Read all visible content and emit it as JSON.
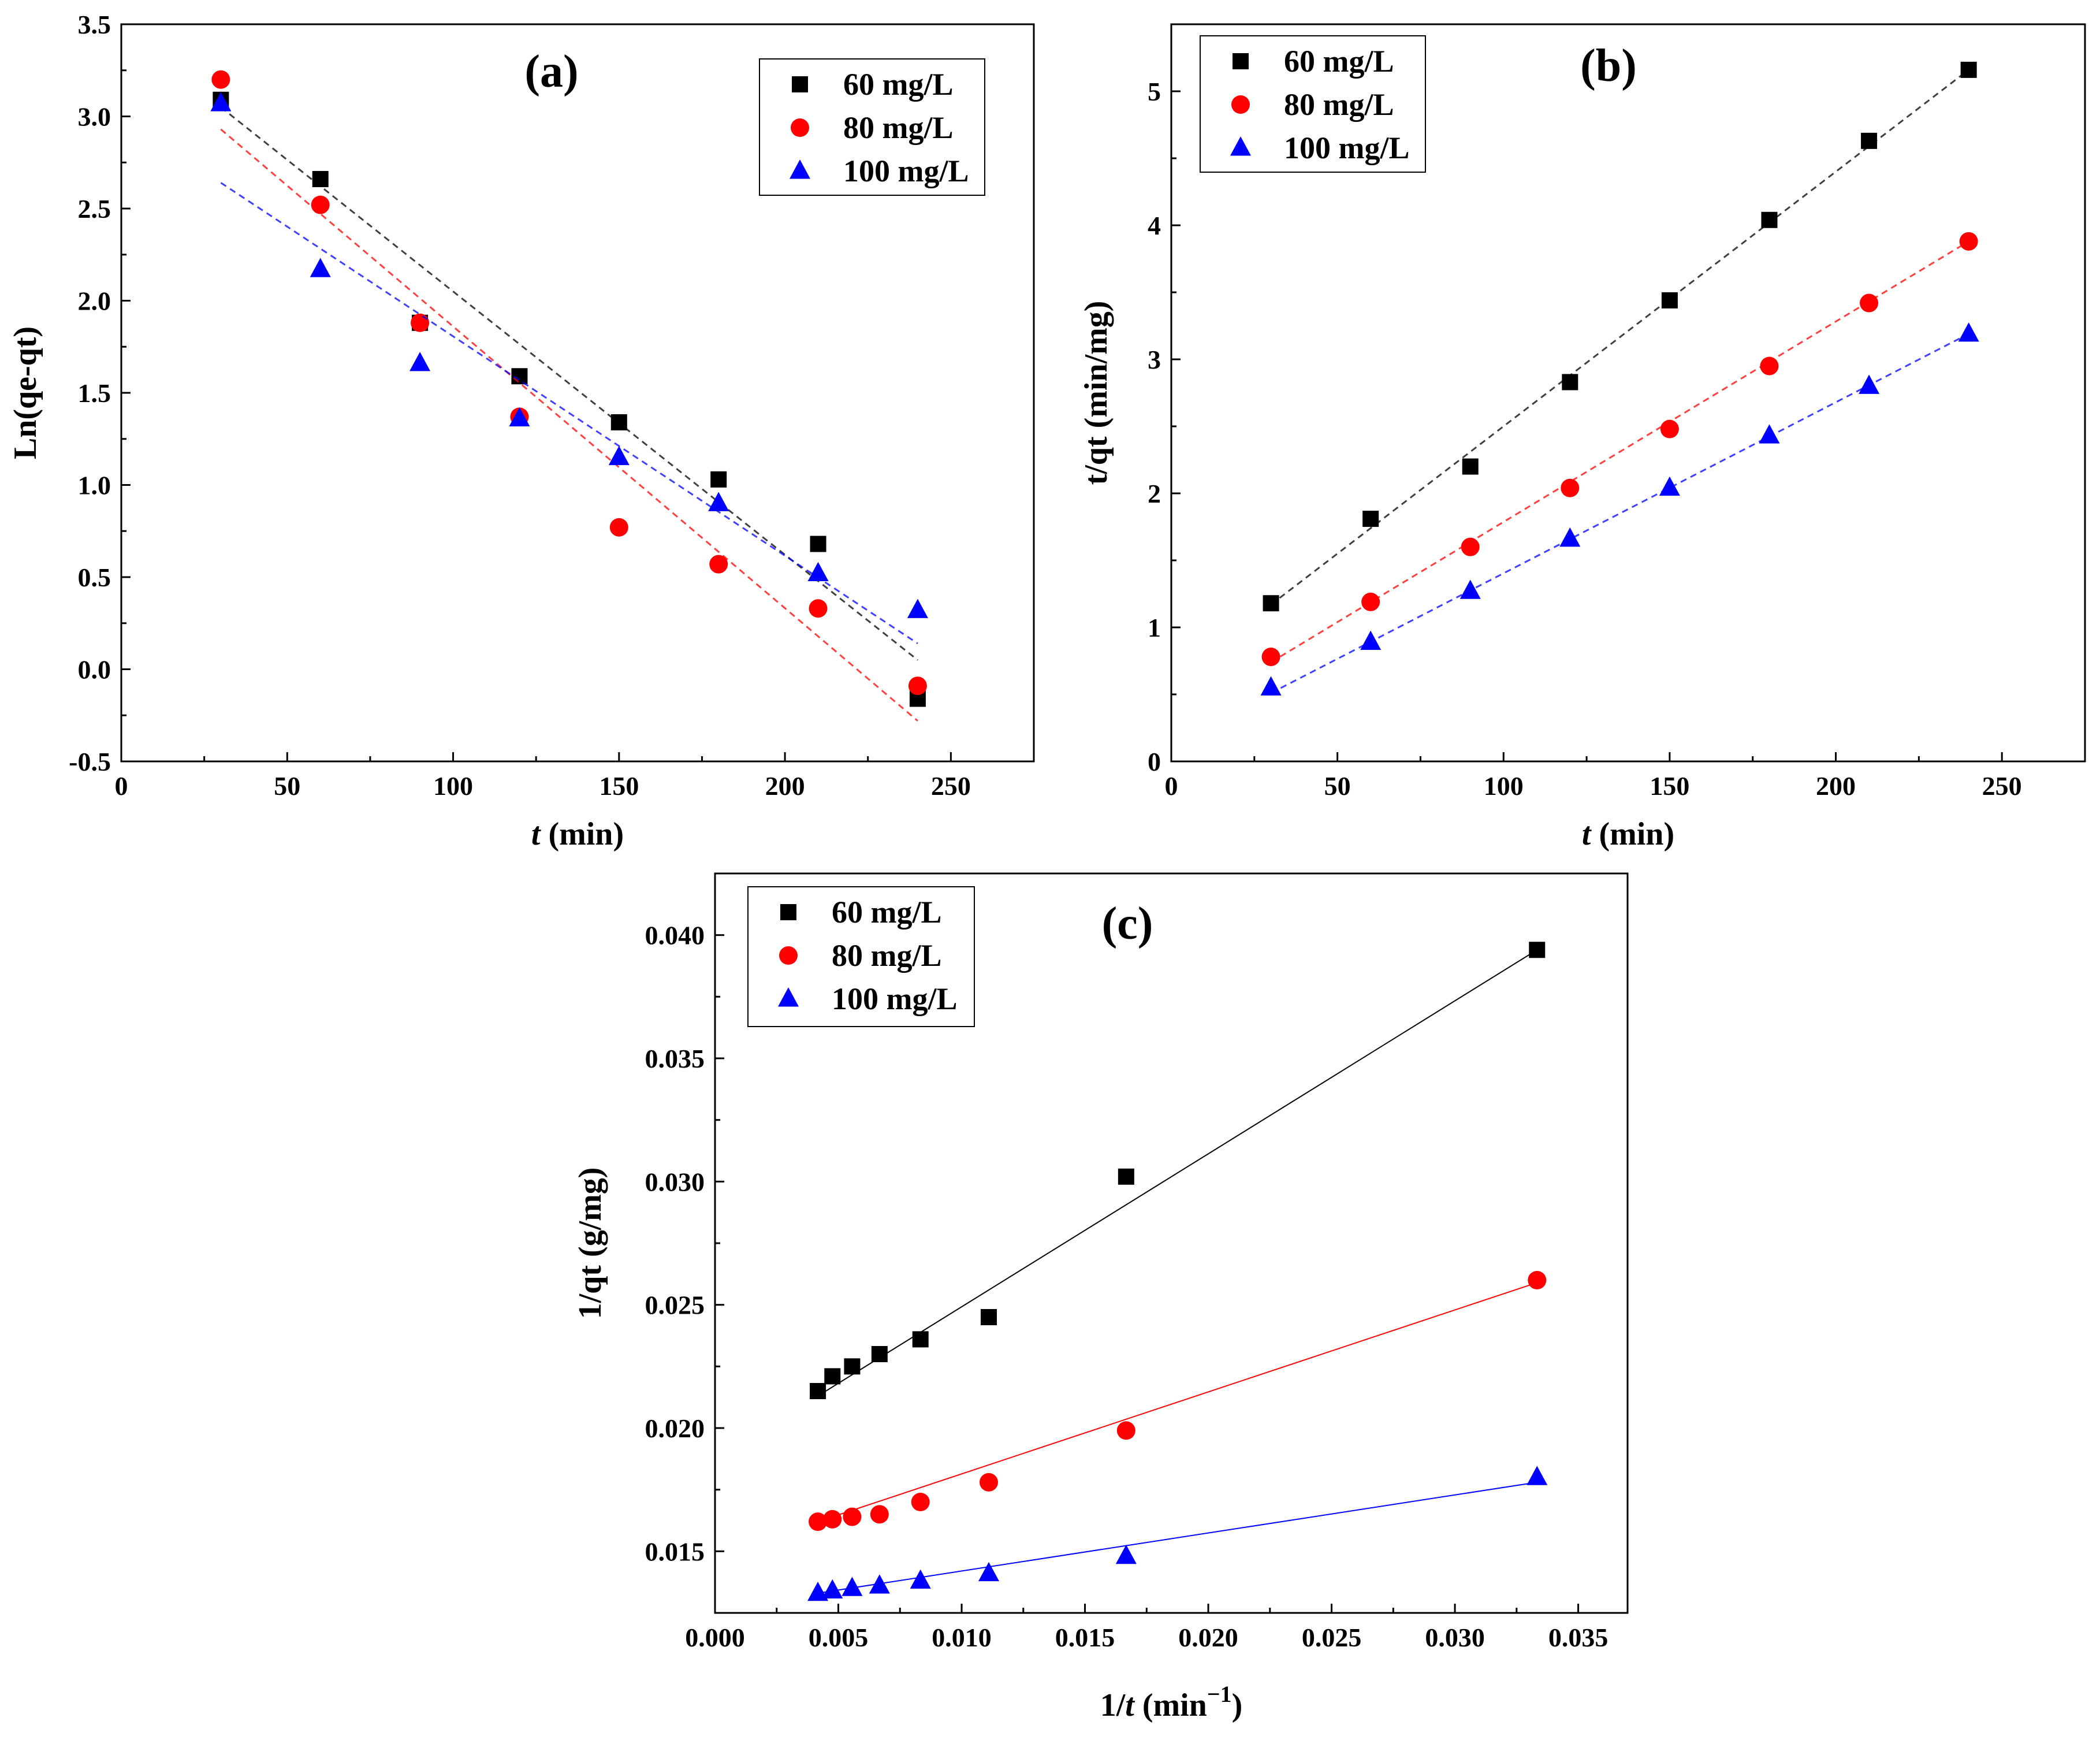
{
  "chart_data": [
    {
      "type": "scatter",
      "panel_label": "(a)",
      "xlabel": {
        "var": "t",
        "rest": " (min)"
      },
      "ylabel": "Ln(qe-qt)",
      "xlim": [
        0,
        275
      ],
      "ylim": [
        -0.5,
        3.5
      ],
      "xticks": [
        0,
        50,
        100,
        150,
        200,
        250
      ],
      "xtick_labels": [
        "0",
        "50",
        "100",
        "150",
        "200",
        "250"
      ],
      "yticks": [
        -0.5,
        0.0,
        0.5,
        1.0,
        1.5,
        2.0,
        2.5,
        3.0,
        3.5
      ],
      "ytick_labels": [
        "-0.5",
        "0.0",
        "0.5",
        "1.0",
        "1.5",
        "2.0",
        "2.5",
        "3.0",
        "3.5"
      ],
      "fit_style": "dashed",
      "legend_position": "top-right",
      "series": [
        {
          "name": "60 mg/L",
          "color": "#000000",
          "marker": "square",
          "x": [
            30,
            60,
            90,
            120,
            150,
            180,
            210,
            240
          ],
          "y": [
            3.09,
            2.66,
            1.88,
            1.59,
            1.34,
            1.03,
            0.68,
            -0.16
          ],
          "fit": [
            [
              30,
              3.05
            ],
            [
              240,
              0.05
            ]
          ]
        },
        {
          "name": "80 mg/L",
          "color": "#ff0000",
          "marker": "circle",
          "x": [
            30,
            60,
            90,
            120,
            150,
            180,
            210,
            240
          ],
          "y": [
            3.2,
            2.52,
            1.88,
            1.37,
            0.77,
            0.57,
            0.33,
            -0.09
          ],
          "fit": [
            [
              30,
              2.93
            ],
            [
              240,
              -0.28
            ]
          ]
        },
        {
          "name": "100 mg/L",
          "color": "#0000ff",
          "marker": "triangle",
          "x": [
            30,
            60,
            90,
            120,
            150,
            180,
            210,
            240
          ],
          "y": [
            3.07,
            2.17,
            1.66,
            1.36,
            1.15,
            0.9,
            0.52,
            0.32
          ],
          "fit": [
            [
              30,
              2.64
            ],
            [
              240,
              0.14
            ]
          ]
        }
      ]
    },
    {
      "type": "scatter",
      "panel_label": "(b)",
      "xlabel": {
        "var": "t",
        "rest": " (min)"
      },
      "ylabel": "t/qt (min/mg)",
      "xlim": [
        0,
        275
      ],
      "ylim": [
        0,
        5.5
      ],
      "xticks": [
        0,
        50,
        100,
        150,
        200,
        250
      ],
      "xtick_labels": [
        "0",
        "50",
        "100",
        "150",
        "200",
        "250"
      ],
      "yticks": [
        0,
        1,
        2,
        3,
        4,
        5
      ],
      "ytick_labels": [
        "0",
        "1",
        "2",
        "3",
        "4",
        "5"
      ],
      "fit_style": "dashed",
      "legend_position": "top-left",
      "series": [
        {
          "name": "60 mg/L",
          "color": "#000000",
          "marker": "square",
          "x": [
            30,
            60,
            90,
            120,
            150,
            180,
            210,
            240
          ],
          "y": [
            1.18,
            1.81,
            2.2,
            2.83,
            3.44,
            4.04,
            4.63,
            5.16
          ],
          "fit": [
            [
              30,
              1.17
            ],
            [
              240,
              5.16
            ]
          ]
        },
        {
          "name": "80 mg/L",
          "color": "#ff0000",
          "marker": "circle",
          "x": [
            30,
            60,
            90,
            120,
            150,
            180,
            210,
            240
          ],
          "y": [
            0.78,
            1.19,
            1.6,
            2.04,
            2.48,
            2.95,
            3.42,
            3.88
          ],
          "fit": [
            [
              30,
              0.74
            ],
            [
              240,
              3.88
            ]
          ]
        },
        {
          "name": "100 mg/L",
          "color": "#0000ff",
          "marker": "triangle",
          "x": [
            30,
            60,
            90,
            120,
            150,
            180,
            210,
            240
          ],
          "y": [
            0.55,
            0.89,
            1.27,
            1.66,
            2.04,
            2.43,
            2.8,
            3.19
          ],
          "fit": [
            [
              30,
              0.51
            ],
            [
              240,
              3.19
            ]
          ]
        }
      ]
    },
    {
      "type": "scatter",
      "panel_label": "(c)",
      "xlabel": {
        "pre": "1/",
        "var": "t",
        "rest": " (min",
        "sup": "−1",
        "post": ")"
      },
      "ylabel": "1/qt (g/mg)",
      "xlim": [
        0.0,
        0.037
      ],
      "ylim": [
        0.0125,
        0.0425
      ],
      "xticks": [
        0.0,
        0.005,
        0.01,
        0.015,
        0.02,
        0.025,
        0.03,
        0.035
      ],
      "xtick_labels": [
        "0.000",
        "0.005",
        "0.010",
        "0.015",
        "0.020",
        "0.025",
        "0.030",
        "0.035"
      ],
      "yticks": [
        0.015,
        0.02,
        0.025,
        0.03,
        0.035,
        0.04
      ],
      "ytick_labels": [
        "0.015",
        "0.020",
        "0.025",
        "0.030",
        "0.035",
        "0.040"
      ],
      "fit_style": "solid",
      "legend_position": "top-left",
      "series": [
        {
          "name": "60 mg/L",
          "color": "#000000",
          "marker": "square",
          "x": [
            0.00417,
            0.00476,
            0.00556,
            0.00667,
            0.00833,
            0.0111,
            0.01667,
            0.03333
          ],
          "y": [
            0.0215,
            0.0221,
            0.0225,
            0.023,
            0.0236,
            0.0245,
            0.0302,
            0.0394
          ],
          "fit": [
            [
              0.00417,
              0.0213
            ],
            [
              0.03333,
              0.0394
            ]
          ]
        },
        {
          "name": "80 mg/L",
          "color": "#ff0000",
          "marker": "circle",
          "x": [
            0.00417,
            0.00476,
            0.00556,
            0.00667,
            0.00833,
            0.0111,
            0.01667,
            0.03333
          ],
          "y": [
            0.0162,
            0.0163,
            0.0164,
            0.0165,
            0.017,
            0.0178,
            0.0199,
            0.026
          ],
          "fit": [
            [
              0.00417,
              0.0162
            ],
            [
              0.03333,
              0.0259
            ]
          ]
        },
        {
          "name": "100 mg/L",
          "color": "#0000ff",
          "marker": "triangle",
          "x": [
            0.00417,
            0.00476,
            0.00556,
            0.00667,
            0.00833,
            0.0111,
            0.01667,
            0.03333
          ],
          "y": [
            0.0133,
            0.0134,
            0.0135,
            0.0136,
            0.0138,
            0.0141,
            0.0148,
            0.018
          ],
          "fit": [
            [
              0.00417,
              0.0133
            ],
            [
              0.03333,
              0.0178
            ]
          ]
        }
      ]
    }
  ]
}
